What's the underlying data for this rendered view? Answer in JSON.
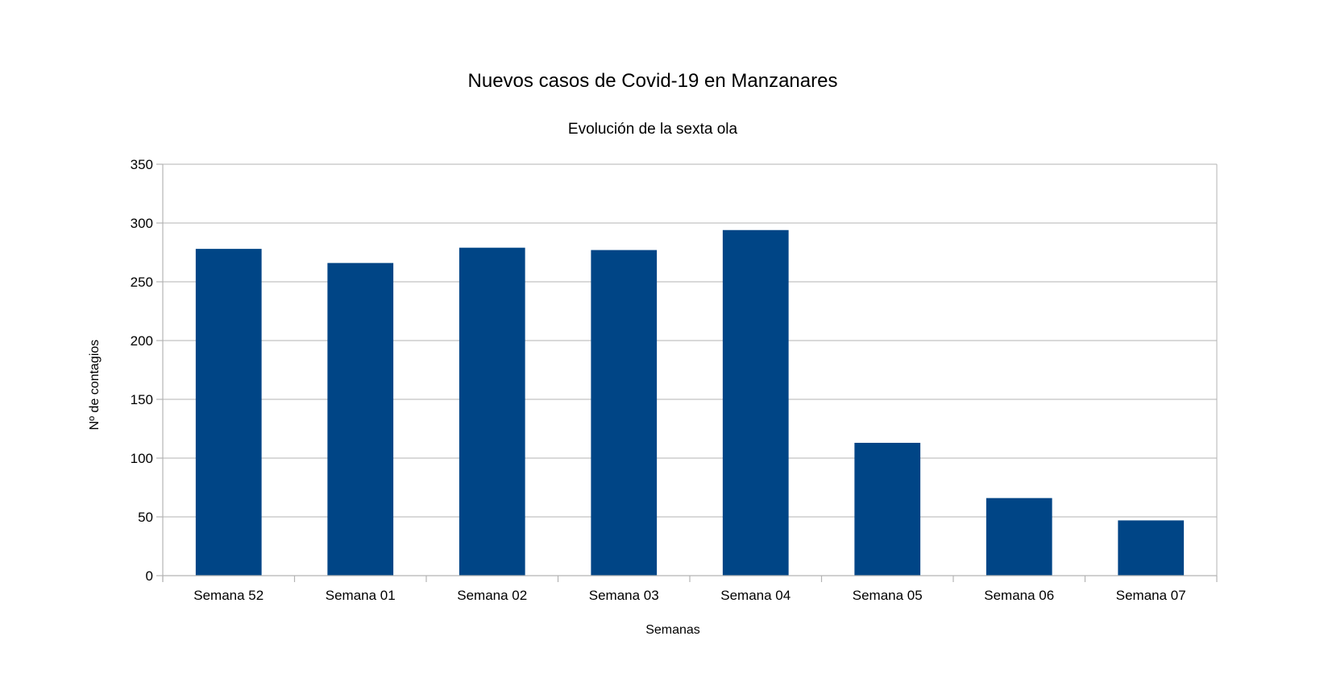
{
  "chart_data": {
    "type": "bar",
    "title": "Nuevos casos de Covid-19 en Manzanares",
    "subtitle": "Evolución de la sexta ola",
    "xlabel": "Semanas",
    "ylabel": "Nº de contagios",
    "categories": [
      "Semana 52",
      "Semana 01",
      "Semana 02",
      "Semana 03",
      "Semana 04",
      "Semana 05",
      "Semana 06",
      "Semana 07"
    ],
    "series": [
      {
        "values": [
          278,
          266,
          279,
          277,
          294,
          113,
          66,
          47
        ],
        "color": "#004586"
      }
    ],
    "ylim": [
      0,
      350
    ],
    "yticks": [
      0,
      50,
      100,
      150,
      200,
      250,
      300,
      350
    ],
    "grid": true,
    "legend": "none"
  }
}
